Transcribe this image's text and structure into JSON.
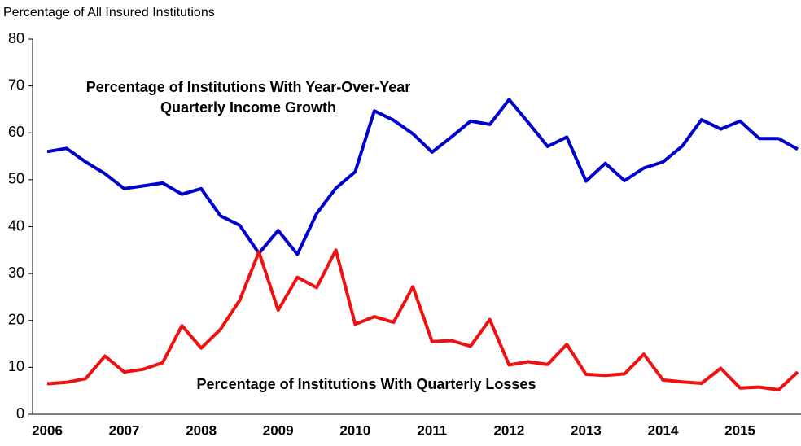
{
  "chart_data": {
    "type": "line",
    "y_axis_label": "Percentage of All Insured Institutions",
    "categories": [
      "2006",
      null,
      null,
      null,
      "2007",
      null,
      null,
      null,
      "2008",
      null,
      null,
      null,
      "2009",
      null,
      null,
      null,
      "2010",
      null,
      null,
      null,
      "2011",
      null,
      null,
      null,
      "2012",
      null,
      null,
      null,
      "2013",
      null,
      null,
      null,
      "2014",
      null,
      null,
      null,
      "2015",
      null,
      null,
      null
    ],
    "series": [
      {
        "name": "Percentage of Institutions With Year-Over-Year Quarterly Income Growth",
        "color": "#0000cc",
        "values": [
          56,
          56.7,
          53.8,
          51.3,
          48.1,
          48.7,
          49.3,
          46.9,
          48.1,
          42.3,
          40.3,
          34.3,
          39.2,
          34.1,
          42.8,
          48.2,
          51.7,
          64.7,
          62.7,
          59.8,
          55.9,
          59.1,
          62.5,
          61.8,
          67.1,
          62.2,
          57.1,
          59.1,
          49.7,
          53.5,
          49.8,
          52.5,
          53.8,
          57.2,
          62.8,
          60.8,
          62.5,
          58.8,
          58.8,
          56.5
        ]
      },
      {
        "name": "Percentage of Institutions With Quarterly Losses",
        "color": "#ee1111",
        "values": [
          6.5,
          6.8,
          7.6,
          12.4,
          9.0,
          9.6,
          11.0,
          18.9,
          14.1,
          18.1,
          24.3,
          34.6,
          22.2,
          29.2,
          27.0,
          35.0,
          19.2,
          20.8,
          19.6,
          27.2,
          15.5,
          15.7,
          14.5,
          20.2,
          10.5,
          11.2,
          10.6,
          14.9,
          8.5,
          8.3,
          8.6,
          12.8,
          7.3,
          6.9,
          6.6,
          9.8,
          5.6,
          5.8,
          5.2,
          9.0
        ]
      }
    ],
    "ylim": [
      0,
      80
    ],
    "yticks": [
      0,
      10,
      20,
      30,
      40,
      50,
      60,
      70,
      80
    ]
  }
}
